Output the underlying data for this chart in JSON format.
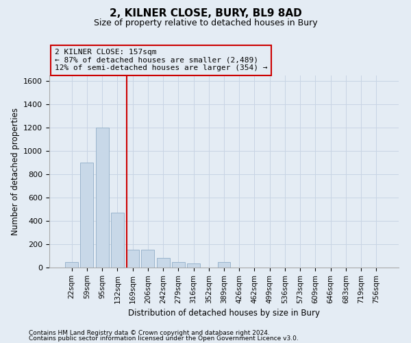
{
  "title": "2, KILNER CLOSE, BURY, BL9 8AD",
  "subtitle": "Size of property relative to detached houses in Bury",
  "xlabel": "Distribution of detached houses by size in Bury",
  "ylabel": "Number of detached properties",
  "footnote1": "Contains HM Land Registry data © Crown copyright and database right 2024.",
  "footnote2": "Contains public sector information licensed under the Open Government Licence v3.0.",
  "property_label": "2 KILNER CLOSE: 157sqm",
  "annotation_line1": "← 87% of detached houses are smaller (2,489)",
  "annotation_line2": "12% of semi-detached houses are larger (354) →",
  "bar_color": "#c8d8e8",
  "bar_edge_color": "#9ab4cc",
  "vline_color": "#cc0000",
  "annotation_box_edgecolor": "#cc0000",
  "grid_color": "#c8d4e4",
  "bg_color": "#e4ecf4",
  "categories": [
    "22sqm",
    "59sqm",
    "95sqm",
    "132sqm",
    "169sqm",
    "206sqm",
    "242sqm",
    "279sqm",
    "316sqm",
    "352sqm",
    "389sqm",
    "426sqm",
    "462sqm",
    "499sqm",
    "536sqm",
    "573sqm",
    "609sqm",
    "646sqm",
    "683sqm",
    "719sqm",
    "756sqm"
  ],
  "values": [
    45,
    900,
    1200,
    470,
    155,
    155,
    80,
    45,
    35,
    0,
    45,
    0,
    0,
    0,
    0,
    0,
    0,
    0,
    0,
    0,
    0
  ],
  "ylim": [
    0,
    1650
  ],
  "yticks": [
    0,
    200,
    400,
    600,
    800,
    1000,
    1200,
    1400,
    1600
  ],
  "vline_x": 3.62,
  "figsize": [
    6.0,
    5.0
  ],
  "dpi": 100
}
